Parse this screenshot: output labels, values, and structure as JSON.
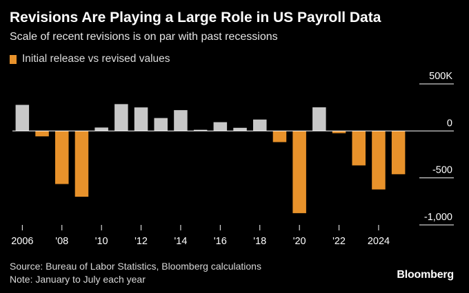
{
  "title": "Revisions Are Playing a Large Role in US Payroll Data",
  "subtitle": "Scale of recent revisions is on par with past recessions",
  "legend": {
    "label": "Initial release vs revised values",
    "color": "#e8922b"
  },
  "source": "Source: Bureau of Labor Statistics, Bloomberg calculations",
  "note": "Note: January to July each year",
  "logo": "Bloomberg",
  "colors": {
    "background": "#000000",
    "negative": "#e8922b",
    "positive": "#c8c8c8",
    "grid": "#ffffff",
    "baseline": "#ffffff",
    "text": "#ffffff"
  },
  "chart_data": {
    "type": "bar",
    "x": [
      2006,
      2007,
      2008,
      2009,
      2010,
      2011,
      2012,
      2013,
      2014,
      2015,
      2016,
      2017,
      2018,
      2019,
      2020,
      2021,
      2022,
      2023,
      2024,
      2025
    ],
    "values": [
      277,
      -58,
      -565,
      -700,
      36,
      285,
      250,
      137,
      221,
      12,
      93,
      33,
      121,
      -119,
      -875,
      251,
      -24,
      -367,
      -623,
      -461
    ],
    "unit": "thousands of jobs",
    "ylim": [
      -1000,
      500
    ],
    "y_ticks": [
      {
        "value": 500,
        "label": "500K"
      },
      {
        "value": 0,
        "label": "0"
      },
      {
        "value": -500,
        "label": "-500"
      },
      {
        "value": -1000,
        "label": "-1,000"
      }
    ],
    "x_ticks": [
      {
        "value": 2006,
        "label": "2006"
      },
      {
        "value": 2008,
        "label": "'08"
      },
      {
        "value": 2010,
        "label": "'10"
      },
      {
        "value": 2012,
        "label": "'12"
      },
      {
        "value": 2014,
        "label": "'14"
      },
      {
        "value": 2016,
        "label": "'16"
      },
      {
        "value": 2018,
        "label": "'18"
      },
      {
        "value": 2020,
        "label": "'20"
      },
      {
        "value": 2022,
        "label": "'22"
      },
      {
        "value": 2024,
        "label": "2024"
      }
    ],
    "grid": true,
    "legend_position": "top-left",
    "xlabel": "",
    "ylabel": ""
  }
}
